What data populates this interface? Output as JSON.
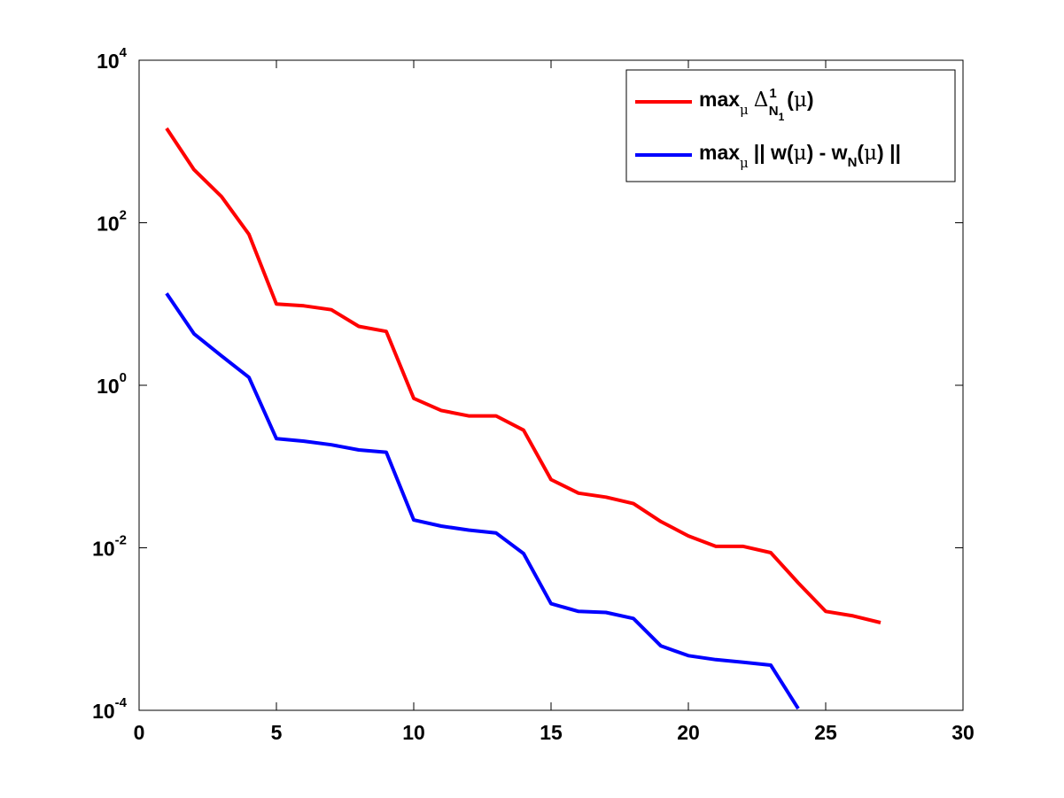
{
  "chart_data": {
    "type": "line",
    "title": "",
    "xlabel": "",
    "ylabel": "",
    "xlim": [
      0,
      30
    ],
    "ylim": [
      0.0001,
      10000
    ],
    "y_scale": "log",
    "grid": false,
    "legend_position": "top-right",
    "x_ticks": [
      "0",
      "5",
      "10",
      "15",
      "20",
      "25",
      "30"
    ],
    "y_ticks": [
      {
        "base": "10",
        "exp": "-4"
      },
      {
        "base": "10",
        "exp": "-2"
      },
      {
        "base": "10",
        "exp": "0"
      },
      {
        "base": "10",
        "exp": "2"
      },
      {
        "base": "10",
        "exp": "4"
      }
    ],
    "series": [
      {
        "color": "#ff0000",
        "legend": {
          "a": "max",
          "a_sub": "μ",
          "b": "Δ",
          "b_sup": "1",
          "b_sub": "N",
          "b_subsub": "1",
          "c": "(",
          "mu": "μ",
          "d": ")"
        },
        "x": [
          1,
          2,
          3,
          4,
          5,
          6,
          7,
          8,
          9,
          10,
          11,
          12,
          13,
          14,
          15,
          16,
          17,
          18,
          19,
          20,
          21,
          22,
          23,
          24,
          25,
          26,
          27
        ],
        "y": [
          1450,
          450,
          210,
          72,
          10.0,
          9.5,
          8.5,
          5.3,
          4.6,
          0.69,
          0.49,
          0.42,
          0.42,
          0.28,
          0.069,
          0.047,
          0.042,
          0.035,
          0.021,
          0.014,
          0.0104,
          0.0104,
          0.0087,
          0.0037,
          0.00165,
          0.00145,
          0.0012
        ]
      },
      {
        "color": "#0000ff",
        "legend": {
          "a": "max",
          "a_sub": "μ",
          "b": "|| w(",
          "mu1": "μ",
          "c": ") - w",
          "c_sub": "N",
          "d": "(",
          "mu2": "μ",
          "e": ") ||"
        },
        "x": [
          1,
          2,
          3,
          4,
          5,
          6,
          7,
          8,
          9,
          10,
          11,
          12,
          13,
          14,
          15,
          16,
          17,
          18,
          19,
          20,
          21,
          22,
          23,
          24
        ],
        "y": [
          13.5,
          4.3,
          2.3,
          1.25,
          0.22,
          0.205,
          0.185,
          0.16,
          0.15,
          0.022,
          0.0185,
          0.0165,
          0.0152,
          0.0085,
          0.00205,
          0.00165,
          0.0016,
          0.00135,
          0.00062,
          0.00047,
          0.00042,
          0.00039,
          0.00036,
          0.000105
        ]
      }
    ]
  }
}
